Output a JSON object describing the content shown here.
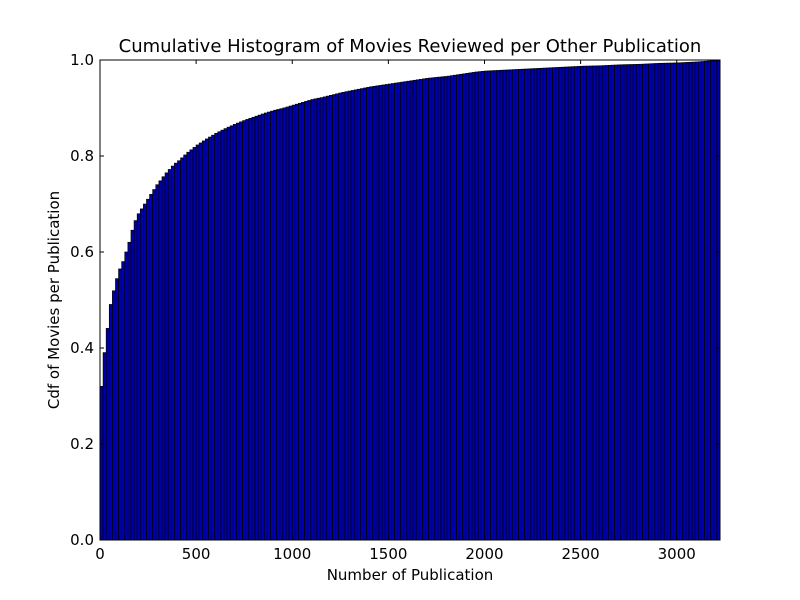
{
  "chart_data": {
    "type": "bar",
    "title": "Cumulative Histogram of Movies Reviewed per Other Publication",
    "xlabel": "Number of Publication",
    "ylabel": "Cdf of Movies per Publication",
    "xlim": [
      0,
      3225
    ],
    "ylim": [
      0.0,
      1.0
    ],
    "bin_width": 16.125,
    "x_ticks": [
      0,
      500,
      1000,
      1500,
      2000,
      2500,
      3000
    ],
    "x_tick_labels": [
      "0",
      "500",
      "1000",
      "1500",
      "2000",
      "2500",
      "3000"
    ],
    "y_ticks": [
      0.0,
      0.2,
      0.4,
      0.6,
      0.8,
      1.0
    ],
    "y_tick_labels": [
      "0.0",
      "0.2",
      "0.4",
      "0.6",
      "0.8",
      "1.0"
    ],
    "grid": false,
    "bar_color": "#0000aa",
    "edge_color": "#000000",
    "cdf_points": [
      [
        0,
        0.32
      ],
      [
        16,
        0.39
      ],
      [
        32,
        0.44
      ],
      [
        48,
        0.49
      ],
      [
        65,
        0.52
      ],
      [
        81,
        0.545
      ],
      [
        97,
        0.565
      ],
      [
        113,
        0.58
      ],
      [
        129,
        0.6
      ],
      [
        145,
        0.62
      ],
      [
        161,
        0.645
      ],
      [
        177,
        0.665
      ],
      [
        194,
        0.68
      ],
      [
        210,
        0.69
      ],
      [
        226,
        0.7
      ],
      [
        242,
        0.71
      ],
      [
        258,
        0.72
      ],
      [
        274,
        0.73
      ],
      [
        290,
        0.74
      ],
      [
        306,
        0.748
      ],
      [
        323,
        0.757
      ],
      [
        339,
        0.765
      ],
      [
        355,
        0.772
      ],
      [
        371,
        0.779
      ],
      [
        387,
        0.785
      ],
      [
        403,
        0.79
      ],
      [
        419,
        0.796
      ],
      [
        435,
        0.802
      ],
      [
        452,
        0.808
      ],
      [
        468,
        0.813
      ],
      [
        484,
        0.818
      ],
      [
        500,
        0.823
      ],
      [
        550,
        0.836
      ],
      [
        600,
        0.848
      ],
      [
        650,
        0.858
      ],
      [
        700,
        0.867
      ],
      [
        750,
        0.875
      ],
      [
        800,
        0.882
      ],
      [
        850,
        0.889
      ],
      [
        900,
        0.895
      ],
      [
        950,
        0.9
      ],
      [
        1000,
        0.906
      ],
      [
        1050,
        0.912
      ],
      [
        1100,
        0.918
      ],
      [
        1150,
        0.922
      ],
      [
        1200,
        0.927
      ],
      [
        1250,
        0.932
      ],
      [
        1300,
        0.936
      ],
      [
        1350,
        0.94
      ],
      [
        1400,
        0.944
      ],
      [
        1450,
        0.947
      ],
      [
        1500,
        0.95
      ],
      [
        1550,
        0.953
      ],
      [
        1600,
        0.956
      ],
      [
        1650,
        0.959
      ],
      [
        1700,
        0.962
      ],
      [
        1750,
        0.964
      ],
      [
        1800,
        0.966
      ],
      [
        1850,
        0.969
      ],
      [
        1900,
        0.972
      ],
      [
        1950,
        0.975
      ],
      [
        2000,
        0.977
      ],
      [
        2100,
        0.979
      ],
      [
        2200,
        0.981
      ],
      [
        2300,
        0.983
      ],
      [
        2400,
        0.985
      ],
      [
        2500,
        0.987
      ],
      [
        2600,
        0.988
      ],
      [
        2700,
        0.99
      ],
      [
        2800,
        0.991
      ],
      [
        2900,
        0.993
      ],
      [
        3000,
        0.994
      ],
      [
        3100,
        0.996
      ],
      [
        3225,
        1.0
      ]
    ]
  }
}
